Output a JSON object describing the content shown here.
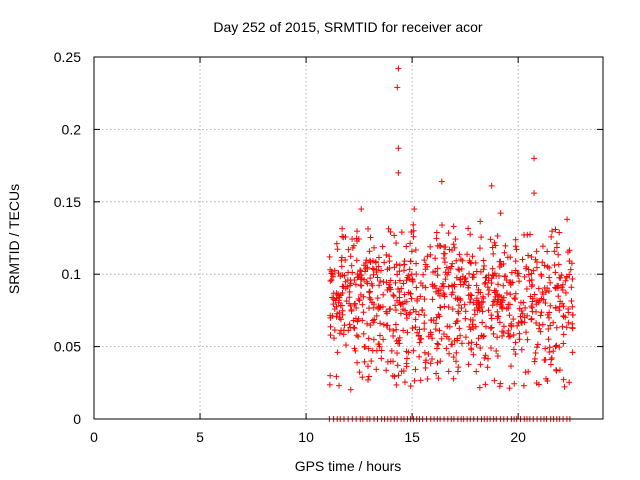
{
  "chart_data": {
    "type": "scatter",
    "title": "Day 252 of 2015, SRMTID for receiver acor",
    "xlabel": "GPS time / hours",
    "ylabel": "SRMTID / TECUs",
    "xlim": [
      0,
      24
    ],
    "ylim": [
      0,
      0.25
    ],
    "x_ticks": [
      0,
      5,
      10,
      15,
      20
    ],
    "x_tick_labels": [
      "0",
      "5",
      "10",
      "15",
      "20"
    ],
    "y_ticks": [
      0,
      0.05,
      0.1,
      0.15,
      0.2,
      0.25
    ],
    "y_tick_labels": [
      "0",
      "0.05",
      "0.1",
      "0.15",
      "0.2",
      "0.25"
    ],
    "grid": true,
    "marker": "+",
    "series": [
      {
        "name": "SRMTID",
        "color": "#ff0000",
        "data_range_x": [
          11.1,
          22.6
        ],
        "n_points": 900,
        "typical_y": [
          0.02,
          0.15
        ],
        "zero_value_band": [
          11.1,
          22.6
        ],
        "highlights": [
          {
            "x": 14.35,
            "y": 0.242
          },
          {
            "x": 14.3,
            "y": 0.229
          },
          {
            "x": 14.35,
            "y": 0.187
          },
          {
            "x": 14.35,
            "y": 0.17
          },
          {
            "x": 20.75,
            "y": 0.18
          },
          {
            "x": 20.75,
            "y": 0.156
          },
          {
            "x": 16.4,
            "y": 0.164
          },
          {
            "x": 18.75,
            "y": 0.161
          },
          {
            "x": 12.6,
            "y": 0.145
          },
          {
            "x": 15.1,
            "y": 0.145
          }
        ]
      }
    ]
  }
}
